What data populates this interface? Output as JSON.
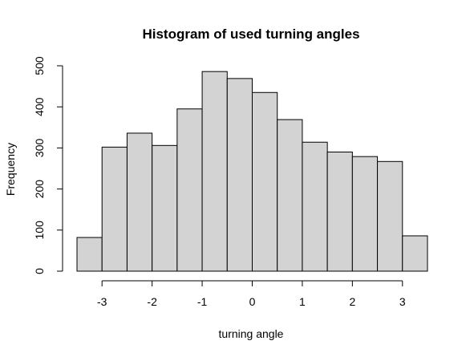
{
  "chart_data": {
    "type": "bar",
    "title": "Histogram of used turning angles",
    "xlabel": "turning angle",
    "ylabel": "Frequency",
    "bin_edges": [
      -3.5,
      -3.0,
      -2.5,
      -2.0,
      -1.5,
      -1.0,
      -0.5,
      0.0,
      0.5,
      1.0,
      1.5,
      2.0,
      2.5,
      3.0,
      3.5
    ],
    "values": [
      82,
      302,
      336,
      306,
      395,
      486,
      469,
      435,
      369,
      314,
      290,
      279,
      267,
      86
    ],
    "xticks": [
      -3,
      -2,
      -1,
      0,
      1,
      2,
      3
    ],
    "xtick_labels": [
      "-3",
      "-2",
      "-1",
      "0",
      "1",
      "2",
      "3"
    ],
    "yticks": [
      0,
      100,
      200,
      300,
      400,
      500
    ],
    "ytick_labels": [
      "0",
      "100",
      "200",
      "300",
      "400",
      "500"
    ],
    "xlim": [
      -3.5,
      3.5
    ],
    "ylim": [
      0,
      500
    ],
    "bar_color": "#d3d3d3",
    "grid": false,
    "legend": false
  }
}
